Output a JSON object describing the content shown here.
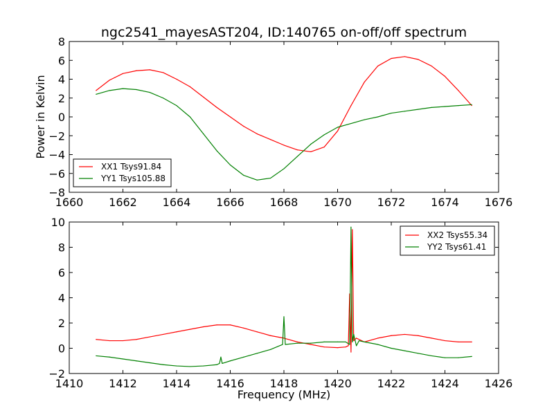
{
  "chart_data": [
    {
      "type": "line",
      "title": "ngc2541_mayesAST204, ID:140765 on-off/off spectrum",
      "xlabel": "",
      "ylabel": "Power in Kelvin",
      "xlim": [
        1660,
        1676
      ],
      "ylim": [
        -8,
        8
      ],
      "xticks": [
        1660,
        1662,
        1664,
        1666,
        1668,
        1670,
        1672,
        1674,
        1676
      ],
      "yticks": [
        -8,
        -6,
        -4,
        -2,
        0,
        2,
        4,
        6,
        8
      ],
      "legend_position": "lower-left",
      "series": [
        {
          "name": "XX1 Tsys91.84",
          "color": "#ff0000",
          "x": [
            1661.0,
            1661.5,
            1662.0,
            1662.5,
            1663.0,
            1663.5,
            1664.0,
            1664.5,
            1665.0,
            1665.5,
            1666.0,
            1666.5,
            1667.0,
            1667.5,
            1668.0,
            1668.5,
            1669.0,
            1669.5,
            1670.0,
            1670.5,
            1671.0,
            1671.5,
            1672.0,
            1672.5,
            1673.0,
            1673.5,
            1674.0,
            1674.5,
            1675.0
          ],
          "y": [
            2.8,
            3.9,
            4.6,
            4.9,
            5.0,
            4.7,
            4.0,
            3.2,
            2.1,
            1.0,
            0.0,
            -1.0,
            -1.8,
            -2.4,
            -3.0,
            -3.5,
            -3.7,
            -3.2,
            -1.5,
            1.2,
            3.7,
            5.4,
            6.2,
            6.4,
            6.1,
            5.4,
            4.3,
            2.8,
            1.2
          ]
        },
        {
          "name": "YY1 Tsys105.88",
          "color": "#008000",
          "x": [
            1661.0,
            1661.5,
            1662.0,
            1662.5,
            1663.0,
            1663.5,
            1664.0,
            1664.5,
            1665.0,
            1665.5,
            1666.0,
            1666.5,
            1667.0,
            1667.5,
            1668.0,
            1668.5,
            1669.0,
            1669.5,
            1670.0,
            1670.5,
            1671.0,
            1671.5,
            1672.0,
            1672.5,
            1673.0,
            1673.5,
            1674.0,
            1674.5,
            1675.0
          ],
          "y": [
            2.4,
            2.8,
            3.0,
            2.9,
            2.6,
            2.0,
            1.2,
            0.0,
            -1.8,
            -3.6,
            -5.1,
            -6.2,
            -6.7,
            -6.5,
            -5.5,
            -4.2,
            -2.9,
            -1.9,
            -1.1,
            -0.7,
            -0.3,
            0.0,
            0.4,
            0.6,
            0.8,
            1.0,
            1.1,
            1.2,
            1.3
          ]
        }
      ]
    },
    {
      "type": "line",
      "title": "",
      "xlabel": "Frequency (MHz)",
      "ylabel": "",
      "xlim": [
        1410,
        1426
      ],
      "ylim": [
        -2,
        10
      ],
      "xticks": [
        1410,
        1412,
        1414,
        1416,
        1418,
        1420,
        1422,
        1424,
        1426
      ],
      "yticks": [
        -2,
        0,
        2,
        4,
        6,
        8,
        10
      ],
      "legend_position": "upper-right",
      "series": [
        {
          "name": "XX2 Tsys55.34",
          "color": "#ff0000",
          "x": [
            1411.0,
            1411.5,
            1412.0,
            1412.5,
            1413.0,
            1413.5,
            1414.0,
            1414.5,
            1415.0,
            1415.5,
            1416.0,
            1416.5,
            1417.0,
            1417.5,
            1418.0,
            1418.5,
            1419.0,
            1419.5,
            1420.0,
            1420.3,
            1420.4,
            1420.45,
            1420.5,
            1420.55,
            1420.6,
            1420.7,
            1421.0,
            1421.5,
            1422.0,
            1422.5,
            1423.0,
            1423.5,
            1424.0,
            1424.5,
            1425.0
          ],
          "y": [
            0.7,
            0.6,
            0.6,
            0.7,
            0.9,
            1.1,
            1.3,
            1.5,
            1.7,
            1.85,
            1.85,
            1.6,
            1.3,
            1.0,
            0.8,
            0.5,
            0.3,
            0.1,
            0.05,
            0.1,
            0.2,
            4.3,
            -0.3,
            9.4,
            0.6,
            0.8,
            0.5,
            0.8,
            1.0,
            1.1,
            1.0,
            0.8,
            0.6,
            0.5,
            0.5
          ]
        },
        {
          "name": "YY2 Tsys61.41",
          "color": "#008000",
          "x": [
            1411.0,
            1411.5,
            1412.0,
            1412.5,
            1413.0,
            1413.5,
            1414.0,
            1414.5,
            1415.0,
            1415.5,
            1415.6,
            1415.65,
            1415.7,
            1416.0,
            1416.5,
            1417.0,
            1417.5,
            1417.95,
            1418.0,
            1418.05,
            1418.5,
            1419.0,
            1419.5,
            1420.0,
            1420.3,
            1420.45,
            1420.5,
            1420.55,
            1420.6,
            1420.7,
            1420.8,
            1421.0,
            1421.5,
            1422.0,
            1422.5,
            1423.0,
            1423.5,
            1424.0,
            1424.5,
            1425.0
          ],
          "y": [
            -0.6,
            -0.7,
            -0.85,
            -1.0,
            -1.15,
            -1.3,
            -1.4,
            -1.45,
            -1.4,
            -1.3,
            -1.2,
            -0.7,
            -1.2,
            -1.0,
            -0.7,
            -0.4,
            -0.1,
            0.3,
            2.5,
            0.3,
            0.4,
            0.4,
            0.5,
            0.5,
            0.5,
            0.3,
            9.6,
            0.5,
            1.1,
            0.2,
            0.6,
            0.5,
            0.3,
            0.0,
            -0.2,
            -0.4,
            -0.6,
            -0.75,
            -0.75,
            -0.65
          ]
        }
      ]
    }
  ]
}
